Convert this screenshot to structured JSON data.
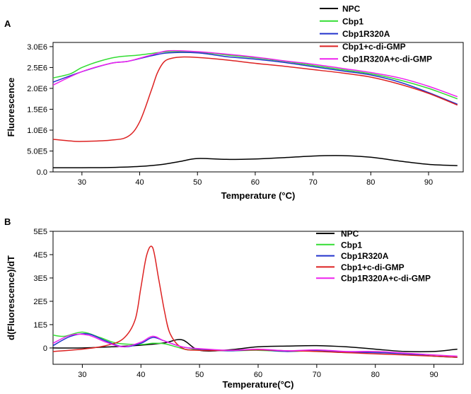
{
  "chart_data": [
    {
      "panel_label": "A",
      "type": "line",
      "xlabel": "Temperature (°C)",
      "ylabel": "Fluorescence",
      "xlim": [
        25,
        96
      ],
      "ylim": [
        0,
        3100000
      ],
      "xticks": [
        30,
        40,
        50,
        60,
        70,
        80,
        90
      ],
      "xtick_labels": [
        "30",
        "40",
        "50",
        "60",
        "70",
        "80",
        "90"
      ],
      "yticks": [
        0,
        500000,
        1000000,
        1500000,
        2000000,
        2500000,
        3000000
      ],
      "ytick_labels": [
        "0.0",
        "5.0E5",
        "1.0E6",
        "1.5E6",
        "2.0E6",
        "2.5E6",
        "3.0E6"
      ],
      "legend_position": "top-right",
      "series": [
        {
          "name": "NPC",
          "color": "#000000",
          "x": [
            25,
            30,
            35,
            40,
            44,
            47,
            50,
            55,
            60,
            65,
            70,
            75,
            80,
            85,
            90,
            95
          ],
          "y": [
            100000,
            100000,
            105000,
            130000,
            180000,
            250000,
            320000,
            300000,
            310000,
            340000,
            380000,
            390000,
            350000,
            260000,
            180000,
            150000
          ]
        },
        {
          "name": "Cbp1",
          "color": "#33dd33",
          "x": [
            25,
            28,
            30,
            33,
            36,
            40,
            45,
            50,
            55,
            60,
            65,
            70,
            75,
            80,
            85,
            90,
            95
          ],
          "y": [
            2250000,
            2350000,
            2500000,
            2650000,
            2750000,
            2800000,
            2880000,
            2870000,
            2800000,
            2730000,
            2650000,
            2550000,
            2450000,
            2350000,
            2200000,
            2000000,
            1750000
          ]
        },
        {
          "name": "Cbp1R320A",
          "color": "#2233cc",
          "x": [
            25,
            30,
            35,
            38,
            42,
            45,
            50,
            55,
            60,
            65,
            70,
            75,
            80,
            85,
            90,
            95
          ],
          "y": [
            2150000,
            2400000,
            2600000,
            2650000,
            2780000,
            2850000,
            2850000,
            2760000,
            2700000,
            2620000,
            2520000,
            2420000,
            2320000,
            2150000,
            1900000,
            1620000
          ]
        },
        {
          "name": "Cbp1+c-di-GMP",
          "color": "#dd2222",
          "x": [
            25,
            28,
            30,
            35,
            38,
            40,
            42,
            43,
            44,
            45,
            47,
            50,
            55,
            60,
            65,
            70,
            75,
            80,
            85,
            90,
            95
          ],
          "y": [
            780000,
            740000,
            730000,
            760000,
            850000,
            1200000,
            1950000,
            2350000,
            2600000,
            2700000,
            2750000,
            2740000,
            2680000,
            2600000,
            2530000,
            2450000,
            2370000,
            2270000,
            2100000,
            1880000,
            1600000
          ]
        },
        {
          "name": "Cbp1R320A+c-di-GMP",
          "color": "#ee22ee",
          "x": [
            25,
            30,
            35,
            38,
            42,
            45,
            50,
            55,
            60,
            65,
            70,
            75,
            80,
            85,
            90,
            95
          ],
          "y": [
            2080000,
            2400000,
            2600000,
            2650000,
            2800000,
            2900000,
            2880000,
            2820000,
            2750000,
            2660000,
            2580000,
            2480000,
            2380000,
            2250000,
            2050000,
            1800000
          ]
        }
      ]
    },
    {
      "panel_label": "B",
      "type": "line",
      "xlabel": "Temperature(°C)",
      "ylabel": "d(Fluorescence)/dT",
      "xlim": [
        25,
        95
      ],
      "ylim": [
        -70000,
        500000
      ],
      "xticks": [
        30,
        40,
        50,
        60,
        70,
        80,
        90
      ],
      "xtick_labels": [
        "30",
        "40",
        "50",
        "60",
        "70",
        "80",
        "90"
      ],
      "yticks": [
        0,
        100000,
        200000,
        300000,
        400000,
        500000
      ],
      "ytick_labels": [
        "0",
        "1E5",
        "2E5",
        "3E5",
        "4E5",
        "5E5"
      ],
      "legend_position": "top-right",
      "series": [
        {
          "name": "NPC",
          "color": "#000000",
          "x": [
            25,
            30,
            35,
            40,
            44,
            47,
            50,
            55,
            60,
            65,
            70,
            75,
            80,
            85,
            90,
            94
          ],
          "y": [
            0,
            0,
            5000,
            12000,
            22000,
            35000,
            -10000,
            -8000,
            5000,
            8000,
            10000,
            5000,
            -5000,
            -15000,
            -15000,
            -5000
          ]
        },
        {
          "name": "Cbp1",
          "color": "#33dd33",
          "x": [
            25,
            27,
            30,
            33,
            36,
            40,
            42,
            44,
            46,
            48,
            50,
            55,
            60,
            65,
            70,
            75,
            80,
            85,
            90,
            94
          ],
          "y": [
            55000,
            50000,
            68000,
            45000,
            20000,
            15000,
            20000,
            18000,
            5000,
            -8000,
            -5000,
            -12000,
            -10000,
            -15000,
            -12000,
            -20000,
            -15000,
            -25000,
            -35000,
            -40000
          ]
        },
        {
          "name": "Cbp1R320A",
          "color": "#2233cc",
          "x": [
            25,
            28,
            31,
            34,
            37,
            40,
            42,
            44,
            47,
            50,
            55,
            60,
            65,
            70,
            75,
            80,
            85,
            90,
            94
          ],
          "y": [
            10000,
            50000,
            60000,
            30000,
            5000,
            20000,
            45000,
            30000,
            5000,
            -5000,
            -12000,
            -8000,
            -15000,
            -10000,
            -18000,
            -20000,
            -25000,
            -35000,
            -40000
          ]
        },
        {
          "name": "Cbp1+c-di-GMP",
          "color": "#dd2222",
          "x": [
            25,
            30,
            34,
            37,
            39,
            40,
            41,
            42,
            43,
            44,
            45,
            47,
            50,
            55,
            60,
            65,
            70,
            75,
            80,
            85,
            90,
            94
          ],
          "y": [
            -15000,
            -5000,
            10000,
            40000,
            120000,
            260000,
            400000,
            430000,
            300000,
            160000,
            60000,
            0,
            -10000,
            -10000,
            -8000,
            -12000,
            -15000,
            -20000,
            -25000,
            -30000,
            -35000,
            -40000
          ]
        },
        {
          "name": "Cbp1R320A+c-di-GMP",
          "color": "#ee22ee",
          "x": [
            25,
            28,
            31,
            34,
            37,
            40,
            42,
            44,
            47,
            50,
            55,
            60,
            65,
            70,
            75,
            80,
            85,
            90,
            94
          ],
          "y": [
            20000,
            55000,
            55000,
            25000,
            5000,
            25000,
            50000,
            30000,
            5000,
            -3000,
            -10000,
            -5000,
            -12000,
            -8000,
            -15000,
            -15000,
            -22000,
            -30000,
            -35000
          ]
        }
      ]
    }
  ]
}
